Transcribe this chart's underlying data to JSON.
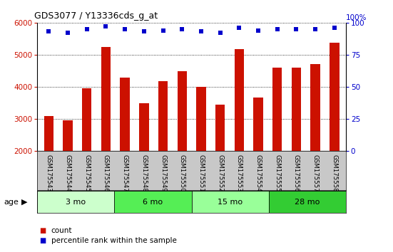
{
  "title": "GDS3077 / Y13336cds_g_at",
  "samples": [
    "GSM175543",
    "GSM175544",
    "GSM175545",
    "GSM175546",
    "GSM175547",
    "GSM175548",
    "GSM175549",
    "GSM175550",
    "GSM175551",
    "GSM175552",
    "GSM175553",
    "GSM175554",
    "GSM175555",
    "GSM175556",
    "GSM175557",
    "GSM175558"
  ],
  "counts": [
    3100,
    2970,
    3950,
    5250,
    4300,
    3500,
    4170,
    4480,
    4000,
    3460,
    5180,
    3660,
    4600,
    4600,
    4720,
    5380
  ],
  "percentiles": [
    93,
    92,
    95,
    97,
    95,
    93,
    94,
    95,
    93,
    92,
    96,
    94,
    95,
    95,
    95,
    96
  ],
  "bar_color": "#CC1100",
  "marker_color": "#0000CC",
  "ylim_left": [
    2000,
    6000
  ],
  "ylim_right": [
    0,
    100
  ],
  "yticks_left": [
    2000,
    3000,
    4000,
    5000,
    6000
  ],
  "yticks_right": [
    0,
    25,
    50,
    75,
    100
  ],
  "age_groups": [
    {
      "label": "3 mo",
      "start": 0,
      "end": 4,
      "color": "#CCFFCC"
    },
    {
      "label": "6 mo",
      "start": 4,
      "end": 8,
      "color": "#55EE55"
    },
    {
      "label": "15 mo",
      "start": 8,
      "end": 12,
      "color": "#99FF99"
    },
    {
      "label": "28 mo",
      "start": 12,
      "end": 16,
      "color": "#33CC33"
    }
  ],
  "tick_bg_color": "#C8C8C8",
  "plot_bg_color": "#FFFFFF",
  "legend_count_color": "#CC1100",
  "legend_pct_color": "#0000CC",
  "bar_width": 0.5
}
